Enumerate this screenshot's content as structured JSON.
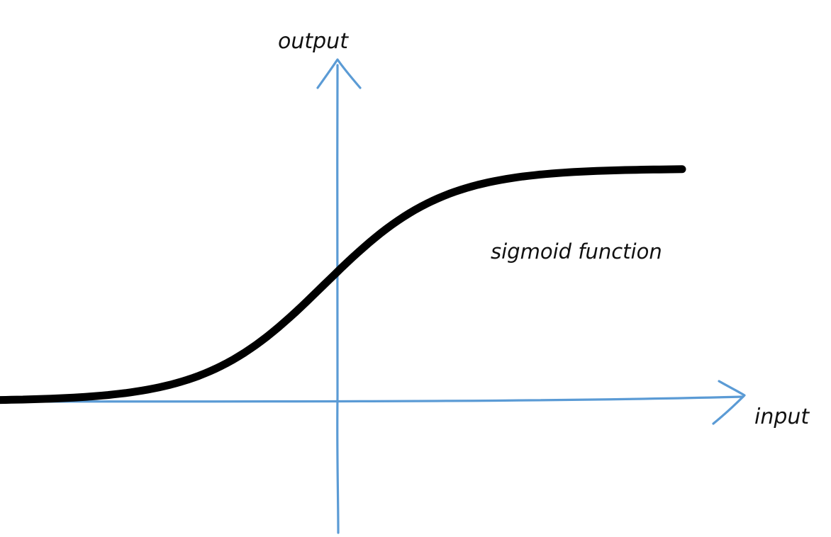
{
  "diagram": {
    "title": "",
    "axis_color": "#5b9bd5",
    "curve_color": "#000000",
    "labels": {
      "y_axis": "output",
      "x_axis": "input",
      "curve": "sigmoid function"
    },
    "curve": {
      "function": "sigmoid",
      "x_range": [
        -7,
        7
      ],
      "y_range": [
        0,
        1
      ]
    }
  }
}
